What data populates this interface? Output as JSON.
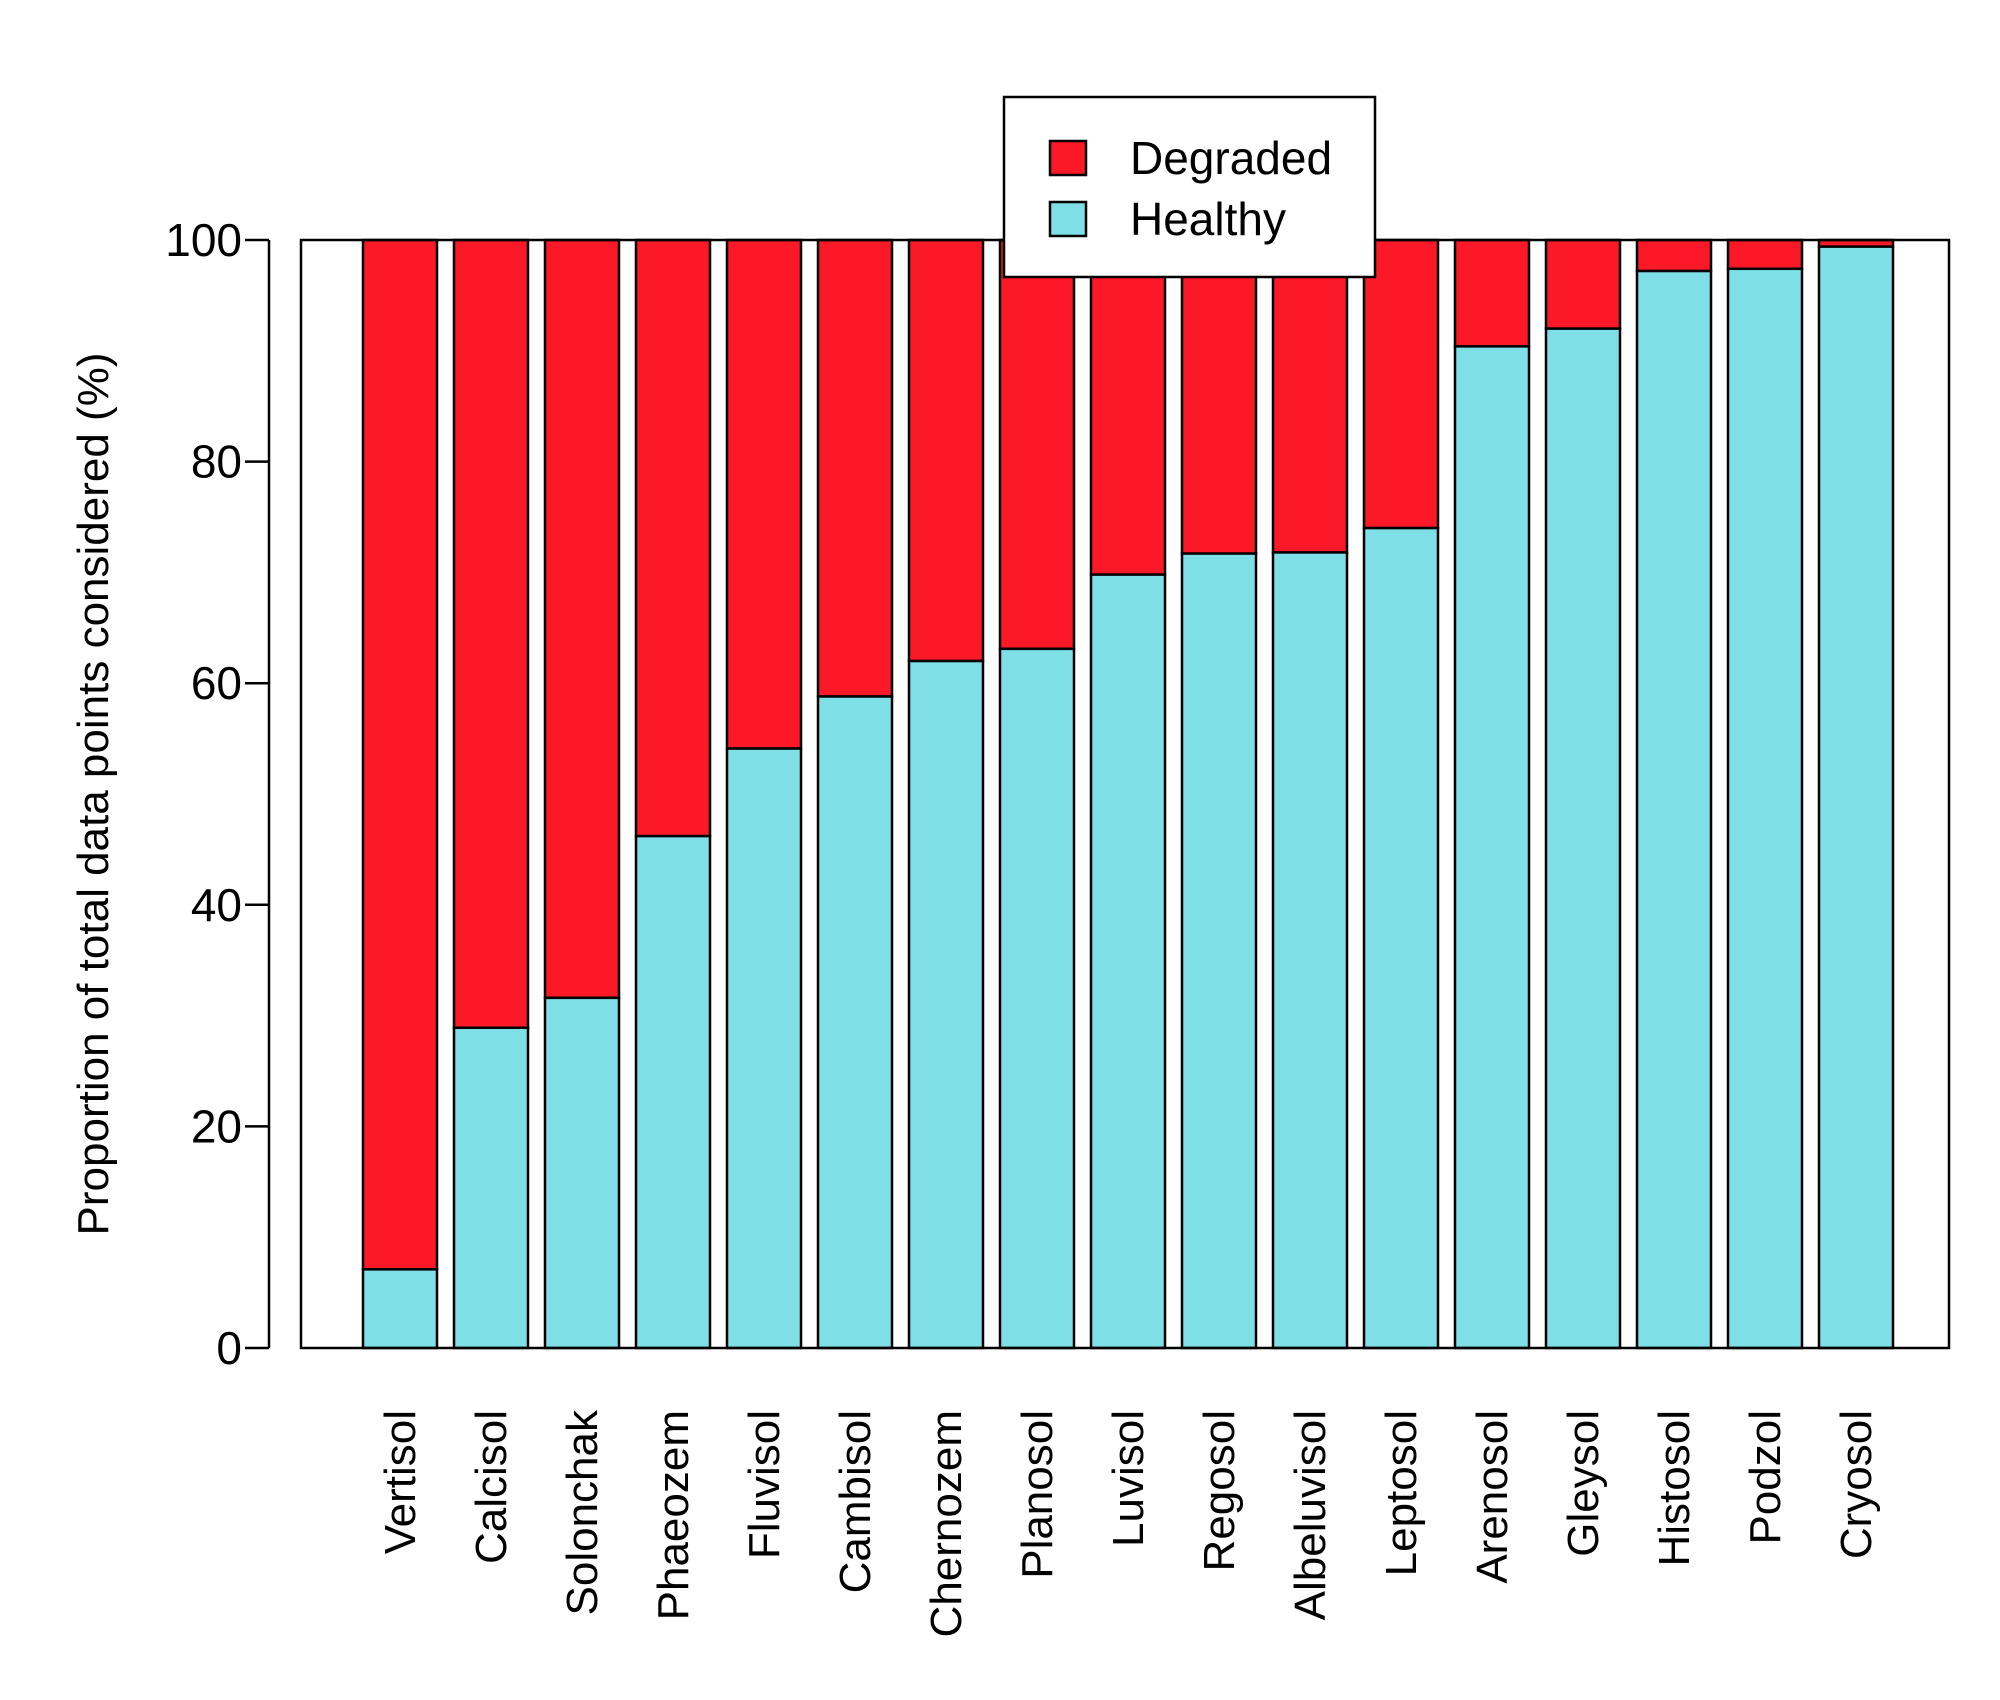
{
  "chart_data": {
    "type": "bar",
    "stacked": true,
    "title": "",
    "xlabel": "",
    "ylabel": "Proportion of total data points considered (%)",
    "ylim": [
      0,
      100
    ],
    "yticks": [
      "0",
      "20",
      "40",
      "60",
      "80",
      "100"
    ],
    "grid": false,
    "legend_position": "top-center",
    "categories": [
      "Vertisol",
      "Calcisol",
      "Solonchak",
      "Phaeozem",
      "Fluvisol",
      "Cambisol",
      "Chernozem",
      "Planosol",
      "Luvisol",
      "Regosol",
      "Albeluvisol",
      "Leptosol",
      "Arenosol",
      "Gleysol",
      "Histosol",
      "Podzol",
      "Cryosol"
    ],
    "series": [
      {
        "name": "Healthy",
        "color": "#7fdfe7",
        "values": [
          7.1,
          28.9,
          31.6,
          46.2,
          54.1,
          58.8,
          62.0,
          63.1,
          69.8,
          71.7,
          71.8,
          74.0,
          90.4,
          92.0,
          97.2,
          97.4,
          99.4
        ]
      },
      {
        "name": "Degraded",
        "color": "#fc1927",
        "values": [
          92.9,
          71.1,
          68.4,
          53.8,
          45.9,
          41.2,
          38.0,
          36.9,
          30.2,
          28.3,
          28.2,
          26.0,
          9.6,
          8.0,
          2.8,
          2.6,
          0.6
        ]
      }
    ],
    "legend": [
      "Degraded",
      "Healthy"
    ]
  }
}
